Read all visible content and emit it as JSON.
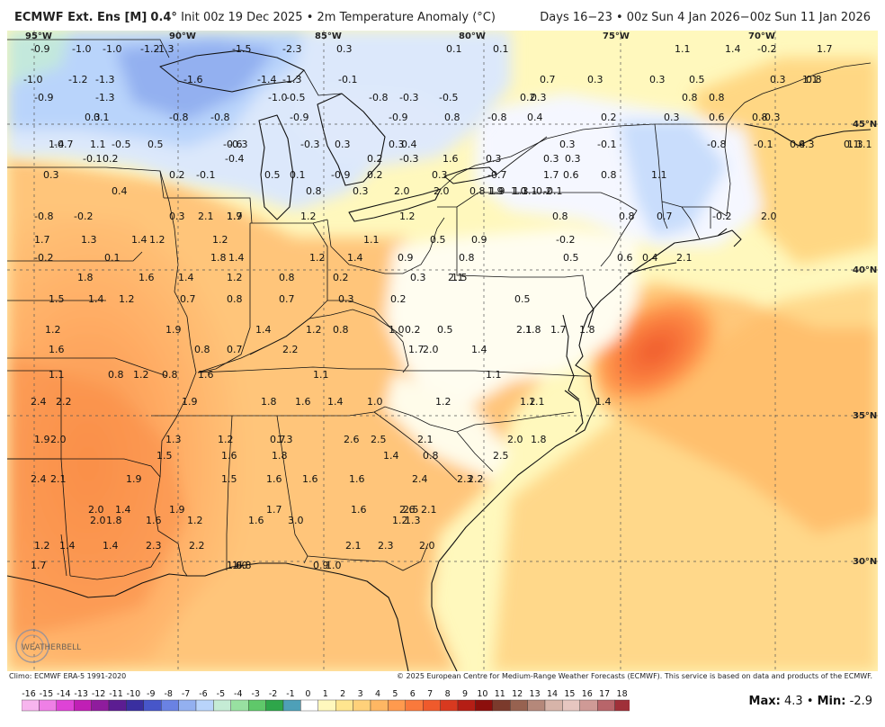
{
  "header": {
    "product": "ECMWF Ext. Ens [M]",
    "resolution": "0.4°",
    "init": "Init 00z 19 Dec 2025",
    "variable": "2m Temperature Anomaly (°C)",
    "bullet": "•",
    "valid": "Days 16−23 • 00z Sun 4 Jan 2026−00z Sun 11 Jan 2026"
  },
  "gridlabels": {
    "lon": [
      "95°W",
      "90°W",
      "85°W",
      "80°W",
      "75°W",
      "70°W"
    ],
    "lat": [
      "45°N",
      "40°N",
      "35°N",
      "30°N"
    ]
  },
  "footer": {
    "climo": "Climo: ECMWF ERA-5 1991-2020",
    "copyright": "© 2025 European Centre for Medium-Range Weather Forecasts (ECMWF). This service is based on data and products of the ECMWF.",
    "max_label": "Max:",
    "max_value": "4.3",
    "min_label": "Min:",
    "min_value": "-2.9",
    "logo_text": "WEATHERBELL"
  },
  "colorbar": {
    "ticks": [
      "-16",
      "-15",
      "-14",
      "-13",
      "-12",
      "-11",
      "-10",
      "-9",
      "-8",
      "-7",
      "-6",
      "-5",
      "-4",
      "-3",
      "-2",
      "-1",
      "0",
      "1",
      "2",
      "3",
      "4",
      "5",
      "6",
      "7",
      "8",
      "9",
      "10",
      "11",
      "12",
      "13",
      "14",
      "15",
      "16",
      "17",
      "18"
    ],
    "colors": [
      "#f7b5ee",
      "#ef7fe6",
      "#de43d6",
      "#c01fb5",
      "#8f1c9d",
      "#5c1d92",
      "#3a2fa0",
      "#4756c9",
      "#6a82e3",
      "#93b0f0",
      "#b9d4fb",
      "#c5ecd5",
      "#98e0a1",
      "#5fc86a",
      "#2ea64a",
      "#4ea0b8",
      "#ffffff",
      "#fff8bd",
      "#ffe58f",
      "#ffd17a",
      "#ffb763",
      "#ff9a4e",
      "#f9793c",
      "#ef5a2c",
      "#d8391f",
      "#b51e15",
      "#8c0f0c",
      "#7b3a2c",
      "#976250",
      "#b5887a",
      "#d7b4a9",
      "#e6c6c0",
      "#cf9a96",
      "#b8656a",
      "#a03039"
    ]
  },
  "values": [
    "-0.9",
    "-1.0",
    "-1.0",
    "-1.2",
    "-1.3",
    "-1.5",
    "-2.3",
    "0.3",
    "0.1",
    "0.1",
    "1.1",
    "1.4",
    "-0.2",
    "1.7",
    "-1.0",
    "-1.2",
    "-1.3",
    "-1.6",
    "-1.4",
    "-1.3",
    "-0.1",
    "0.7",
    "0.3",
    "0.3",
    "0.5",
    "0.3",
    "0.8",
    "1.1",
    "-0.9",
    "-1.3",
    "-1.0",
    "-0.5",
    "-0.8",
    "-0.3",
    "-0.5",
    "0.2",
    "0.3",
    "0.8",
    "0.8",
    "0.3",
    "0.1",
    "-0.8",
    "-0.8",
    "-0.9",
    "-0.9",
    "0.8",
    "-0.8",
    "0.4",
    "0.2",
    "0.3",
    "0.6",
    "0.8",
    "-0.3",
    "-0.7",
    "-0.5",
    "0.5",
    "-0.6",
    "-0.3",
    "0.4",
    "0.3",
    "1.4",
    "1.1",
    "-0.3",
    "0.3",
    "0.3",
    "-0.1",
    "-0.8",
    "-0.1",
    "0.4",
    "1.3",
    "1.1",
    "-0.3",
    "0.1",
    "-0.1",
    "0.2",
    "-0.4",
    "0.2",
    "-0.3",
    "1.6",
    "0.3",
    "0.3",
    "0.3",
    "0.3",
    "0.2",
    "-0.1",
    "0.5",
    "0.1",
    "-0.9",
    "0.2",
    "-0.7",
    "0.3",
    "1.7",
    "0.6",
    "0.8",
    "1.1",
    "0.4",
    "0.8",
    "0.3",
    "2.0",
    "2.0",
    "1.9",
    "1.3",
    "0.8",
    "1.9",
    "1.0",
    "1.1",
    "-0.2",
    "-0.1",
    "-0.8",
    "-0.2",
    "0.3",
    "2.1",
    "1.9",
    "1.7",
    "1.2",
    "1.2",
    "0.8",
    "0.8",
    "0.7",
    "-0.2",
    "2.0",
    "1.7",
    "1.3",
    "1.4",
    "1.2",
    "1.2",
    "1.1",
    "0.9",
    "0.5",
    "-0.2",
    "-0.2",
    "0.1",
    "1.8",
    "1.4",
    "1.2",
    "1.4",
    "0.9",
    "0.8",
    "0.5",
    "0.6",
    "0.4",
    "2.1",
    "1.8",
    "1.6",
    "1.4",
    "1.2",
    "0.8",
    "0.2",
    "0.3",
    "2.1",
    "1.5",
    "1.5",
    "1.4",
    "1.2",
    "0.7",
    "0.8",
    "0.7",
    "0.3",
    "0.2",
    "0.5",
    "1.2",
    "1.9",
    "1.4",
    "1.2",
    "0.8",
    "1.0",
    "0.2",
    "0.5",
    "2.1",
    "1.8",
    "1.7",
    "1.8",
    "1.6",
    "0.8",
    "0.7",
    "2.2",
    "2.0",
    "1.7",
    "1.4",
    "1.1",
    "0.8",
    "0.8",
    "1.2",
    "1.6",
    "1.1",
    "1.1",
    "2.4",
    "2.2",
    "1.9",
    "1.8",
    "1.6",
    "1.4",
    "1.0",
    "1.2",
    "1.4",
    "1.2",
    "1.1",
    "1.9",
    "2.0",
    "1.3",
    "1.2",
    "0.7",
    "1.3",
    "2.6",
    "2.5",
    "2.1",
    "2.0",
    "1.8",
    "1.5",
    "1.6",
    "1.8",
    "1.4",
    "0.8",
    "2.5",
    "2.4",
    "2.1",
    "1.9",
    "1.5",
    "1.6",
    "1.6",
    "1.6",
    "2.4",
    "2.2",
    "2.3",
    "2.0",
    "1.4",
    "1.9",
    "1.7",
    "1.6",
    "2.6",
    "2.5",
    "2.1",
    "2.0",
    "1.8",
    "1.6",
    "1.2",
    "1.6",
    "3.0",
    "1.2",
    "1.3",
    "1.2",
    "1.4",
    "1.4",
    "2.3",
    "2.2",
    "2.1",
    "2.3",
    "2.0",
    "1.7",
    "1.6",
    "1.0",
    "0.8",
    "0.9",
    "1.0"
  ]
}
